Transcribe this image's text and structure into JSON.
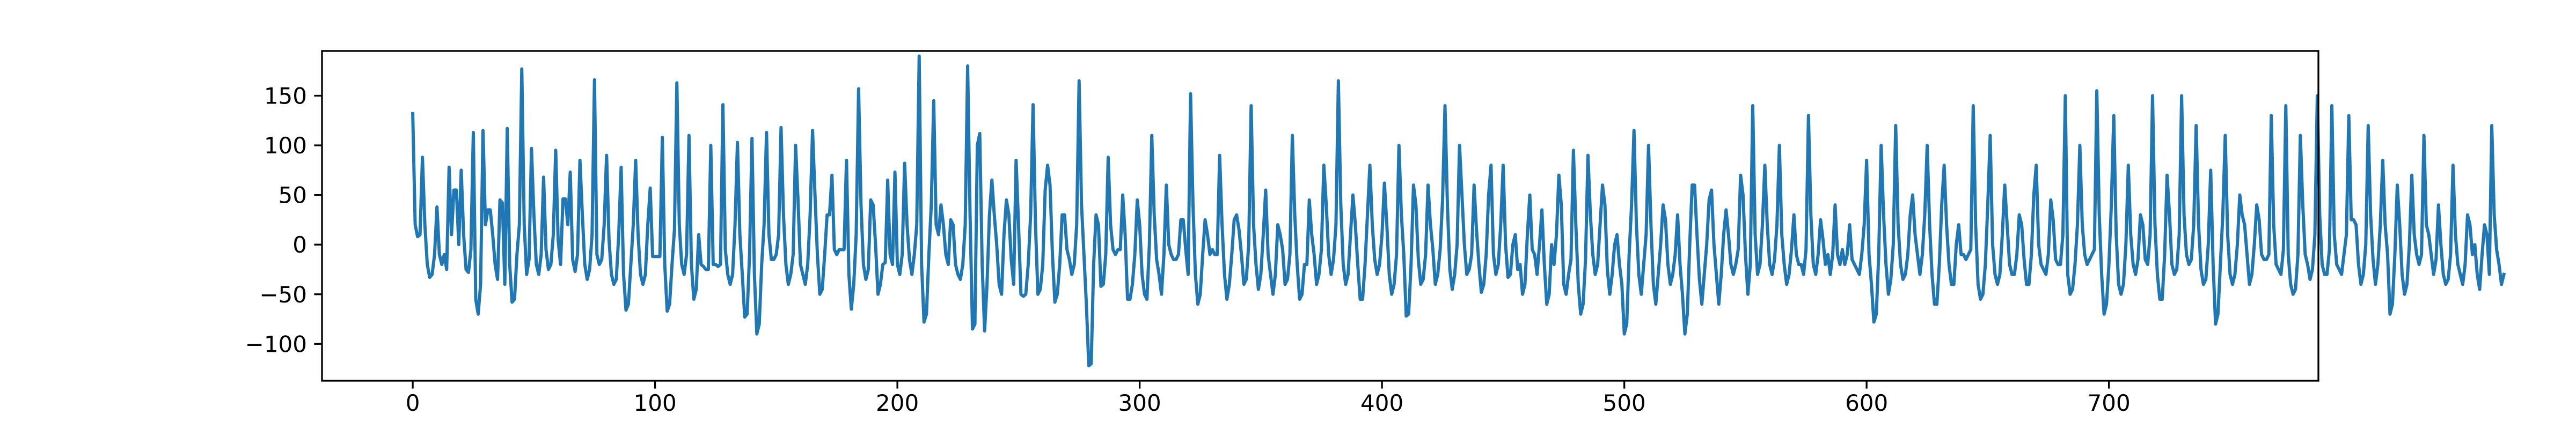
{
  "chart_data": {
    "type": "line",
    "color": "#1f77b4",
    "xlim": [
      -37.45,
      786.45
    ],
    "xticks": [
      0,
      100,
      200,
      300,
      400,
      500,
      600,
      700
    ],
    "ylim": [
      -137.1,
      195.1
    ],
    "yticks": [
      {
        "value": -100,
        "label": "−100"
      },
      {
        "value": -50,
        "label": "−50"
      },
      0,
      50,
      100,
      150
    ],
    "values": [
      132,
      20,
      8,
      10,
      88,
      20,
      -20,
      -33,
      -30,
      -10,
      38,
      -10,
      -20,
      -10,
      -25,
      78,
      10,
      55,
      55,
      0,
      75,
      10,
      -25,
      -28,
      -5,
      113,
      -55,
      -70,
      -40,
      115,
      20,
      35,
      35,
      10,
      -20,
      -35,
      45,
      42,
      -40,
      117,
      -20,
      -58,
      -55,
      -10,
      20,
      177,
      20,
      -30,
      -15,
      97,
      30,
      -20,
      -30,
      -10,
      68,
      -5,
      -25,
      -20,
      10,
      95,
      5,
      -20,
      46,
      46,
      20,
      73,
      -15,
      -27,
      -10,
      85,
      30,
      -20,
      -35,
      -25,
      10,
      166,
      -10,
      -20,
      -15,
      20,
      90,
      5,
      -30,
      -40,
      -35,
      10,
      78,
      -30,
      -66,
      -60,
      -20,
      20,
      85,
      10,
      -30,
      -40,
      -30,
      20,
      57,
      -12,
      -12,
      -12,
      -12,
      108,
      -20,
      -67,
      -60,
      -20,
      15,
      163,
      20,
      -20,
      -30,
      -10,
      110,
      -20,
      -55,
      -45,
      10,
      -20,
      -22,
      -25,
      -25,
      100,
      -20,
      -20,
      -22,
      -20,
      141,
      -5,
      -30,
      -40,
      -30,
      20,
      103,
      10,
      -30,
      -73,
      -70,
      -10,
      107,
      -30,
      -90,
      -80,
      -20,
      20,
      113,
      10,
      -15,
      -15,
      -10,
      10,
      118,
      30,
      -20,
      -40,
      -30,
      -10,
      100,
      45,
      -20,
      -30,
      -40,
      -20,
      30,
      115,
      50,
      -10,
      -50,
      -45,
      -10,
      30,
      30,
      70,
      -5,
      -10,
      -5,
      -5,
      -5,
      85,
      -30,
      -65,
      -40,
      10,
      157,
      40,
      -20,
      -35,
      -25,
      45,
      40,
      0,
      -50,
      -40,
      -20,
      -18,
      65,
      -10,
      -20,
      73,
      -20,
      -30,
      -10,
      82,
      20,
      -15,
      -30,
      -10,
      20,
      190,
      -20,
      -78,
      -70,
      -10,
      40,
      145,
      20,
      10,
      40,
      20,
      -10,
      -20,
      25,
      20,
      -20,
      -30,
      -35,
      -20,
      20,
      180,
      30,
      -85,
      -80,
      100,
      112,
      -20,
      -87,
      -40,
      30,
      65,
      30,
      0,
      -40,
      -50,
      10,
      45,
      30,
      -15,
      -40,
      85,
      20,
      -50,
      -52,
      -50,
      -20,
      30,
      141,
      20,
      -50,
      -45,
      -20,
      55,
      80,
      60,
      -10,
      -58,
      -50,
      -20,
      30,
      30,
      -5,
      -15,
      -30,
      -20,
      20,
      165,
      40,
      -10,
      -60,
      -122,
      -120,
      -20,
      30,
      20,
      -42,
      -40,
      -10,
      88,
      20,
      -5,
      -10,
      -5,
      -5,
      50,
      10,
      -55,
      -55,
      -40,
      -10,
      45,
      20,
      -30,
      -50,
      -55,
      0,
      110,
      30,
      -15,
      -30,
      -50,
      -10,
      60,
      0,
      -10,
      -15,
      -15,
      -10,
      25,
      25,
      -5,
      -30,
      152,
      40,
      -30,
      -60,
      -50,
      -10,
      25,
      10,
      -10,
      -5,
      -10,
      -10,
      90,
      20,
      -30,
      -55,
      -40,
      -10,
      25,
      30,
      15,
      -10,
      -40,
      -35,
      0,
      140,
      20,
      -20,
      -45,
      -30,
      10,
      55,
      -10,
      -30,
      -50,
      -30,
      20,
      10,
      -5,
      -40,
      -35,
      -10,
      110,
      30,
      -20,
      -55,
      -50,
      -20,
      -20,
      45,
      10,
      -10,
      -40,
      -30,
      -5,
      80,
      40,
      -10,
      -30,
      -15,
      20,
      165,
      40,
      -20,
      -40,
      -30,
      10,
      50,
      20,
      -20,
      -55,
      -55,
      -20,
      30,
      80,
      20,
      -15,
      -30,
      -20,
      10,
      62,
      20,
      -30,
      -50,
      -40,
      -10,
      100,
      30,
      -10,
      -72,
      -70,
      -20,
      60,
      40,
      -15,
      -40,
      -35,
      -10,
      60,
      20,
      -5,
      -40,
      -30,
      -5,
      45,
      140,
      40,
      -25,
      -45,
      -30,
      0,
      100,
      50,
      0,
      -30,
      -25,
      -10,
      60,
      15,
      -20,
      -48,
      -40,
      -10,
      50,
      80,
      -10,
      -30,
      -20,
      20,
      80,
      0,
      -33,
      -30,
      0,
      10,
      -25,
      -20,
      -50,
      -40,
      10,
      50,
      -5,
      -10,
      -30,
      0,
      35,
      -20,
      -60,
      -50,
      0,
      -20,
      10,
      70,
      40,
      -40,
      -50,
      -30,
      -15,
      95,
      20,
      -40,
      -70,
      -60,
      -15,
      90,
      30,
      -10,
      -30,
      -20,
      20,
      60,
      40,
      -25,
      -50,
      -30,
      0,
      10,
      -20,
      -40,
      -90,
      -80,
      -10,
      40,
      115,
      20,
      -30,
      -50,
      -20,
      10,
      100,
      20,
      -40,
      -60,
      -30,
      0,
      40,
      25,
      -20,
      -40,
      -30,
      -10,
      30,
      -20,
      -50,
      -90,
      -70,
      0,
      60,
      60,
      10,
      -35,
      -60,
      -30,
      0,
      45,
      55,
      0,
      -30,
      -60,
      -30,
      10,
      35,
      10,
      -20,
      -30,
      -20,
      -5,
      70,
      50,
      -10,
      -50,
      -20,
      140,
      10,
      -30,
      -20,
      20,
      80,
      20,
      -20,
      -30,
      -15,
      20,
      100,
      10,
      -20,
      -40,
      -30,
      -5,
      30,
      -10,
      -20,
      -20,
      -30,
      -5,
      130,
      30,
      -20,
      -30,
      -10,
      25,
      5,
      -20,
      -10,
      -30,
      -10,
      40,
      -10,
      -20,
      -5,
      -20,
      -10,
      20,
      -15,
      -20,
      -25,
      -30,
      -10,
      20,
      85,
      -10,
      -40,
      -78,
      -70,
      -10,
      100,
      30,
      -20,
      -50,
      -35,
      0,
      120,
      20,
      -20,
      -35,
      -30,
      -10,
      30,
      50,
      10,
      -10,
      -30,
      -10,
      30,
      100,
      20,
      -30,
      -60,
      -60,
      -20,
      40,
      80,
      20,
      -20,
      -40,
      -40,
      0,
      20,
      -10,
      -10,
      -15,
      -10,
      -5,
      140,
      20,
      -40,
      -55,
      -50,
      -20,
      40,
      110,
      0,
      -30,
      -40,
      -30,
      10,
      60,
      20,
      -20,
      -30,
      -30,
      -10,
      30,
      20,
      -15,
      -40,
      -40,
      -10,
      50,
      80,
      0,
      -20,
      -25,
      -30,
      -10,
      45,
      25,
      -15,
      -20,
      -20,
      10,
      150,
      -30,
      -50,
      -45,
      -20,
      20,
      100,
      20,
      -10,
      -20,
      -15,
      -10,
      -5,
      155,
      30,
      -30,
      -70,
      -60,
      -20,
      40,
      130,
      10,
      -40,
      -50,
      -40,
      0,
      80,
      10,
      -20,
      -30,
      -15,
      30,
      20,
      -15,
      -20,
      10,
      150,
      20,
      -30,
      -55,
      -55,
      -10,
      70,
      30,
      -20,
      -30,
      -25,
      10,
      150,
      30,
      -10,
      -20,
      -15,
      20,
      120,
      20,
      -25,
      -40,
      -35,
      0,
      75,
      -20,
      -80,
      -70,
      -20,
      30,
      110,
      10,
      -30,
      -40,
      -30,
      0,
      50,
      30,
      20,
      -10,
      -40,
      -30,
      0,
      40,
      25,
      -10,
      -15,
      -15,
      -10,
      130,
      20,
      -20,
      -25,
      -30,
      -5,
      140,
      -10,
      -40,
      -50,
      -45,
      -10,
      110,
      40,
      -10,
      -20,
      -35,
      -25,
      10,
      150,
      30,
      -20,
      -30,
      -30,
      -5,
      140,
      10,
      -20,
      -25,
      -30,
      -10,
      10,
      130,
      25,
      25,
      20,
      -20,
      -40,
      -30,
      0,
      120,
      30,
      -15,
      -40,
      -20,
      20,
      85,
      20,
      -10,
      -70,
      -60,
      -10,
      60,
      20,
      -30,
      -50,
      -40,
      0,
      70,
      10,
      -10,
      -20,
      -10,
      110,
      20,
      10,
      -10,
      -30,
      -15,
      40,
      0,
      -30,
      -40,
      -35,
      -10,
      80,
      10,
      -20,
      -30,
      -40,
      -20,
      30,
      20,
      -10,
      0,
      -30,
      -45,
      -10,
      20,
      10,
      -30,
      120,
      30,
      -5,
      -20,
      -40,
      -30
    ]
  }
}
